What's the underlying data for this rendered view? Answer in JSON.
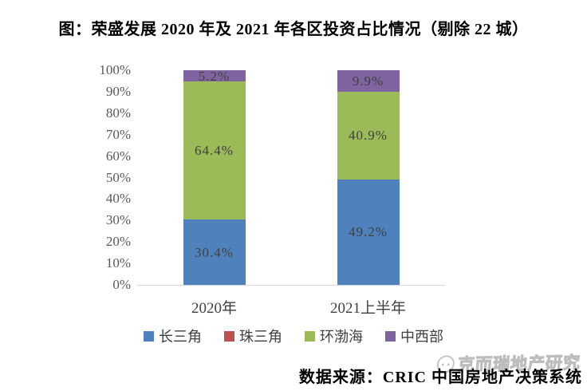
{
  "title": "图：荣盛发展 2020 年及 2021 年各区投资占比情况（剔除 22 城）",
  "source": "数据来源：CRIC 中国房地产决策系统",
  "watermark": "克而瑞地产研究",
  "colors": {
    "axis_line": "#d9d9d9",
    "tick_label": "#595959",
    "data_label": "#3f3f3f"
  },
  "chart_data": {
    "type": "bar",
    "stacked": true,
    "title": "图：荣盛发展 2020 年及 2021 年各区投资占比情况（剔除 22 城）",
    "categories": [
      "2020年",
      "2021上半年"
    ],
    "series": [
      {
        "name": "长三角",
        "color": "#4F81BD",
        "values": [
          30.4,
          49.2
        ],
        "labels": [
          "30.4%",
          "49.2%"
        ]
      },
      {
        "name": "珠三角",
        "color": "#C0504D",
        "values": [
          0,
          0
        ],
        "labels": [
          "",
          ""
        ]
      },
      {
        "name": "环渤海",
        "color": "#9BBB59",
        "values": [
          64.4,
          40.9
        ],
        "labels": [
          "64.4%",
          "40.9%"
        ]
      },
      {
        "name": "中西部",
        "color": "#8064A2",
        "values": [
          5.2,
          9.9
        ],
        "labels": [
          "5.2%",
          "9.9%"
        ]
      }
    ],
    "y_ticks": [
      "0%",
      "10%",
      "20%",
      "30%",
      "40%",
      "50%",
      "60%",
      "70%",
      "80%",
      "90%",
      "100%"
    ],
    "ylim": [
      0,
      100
    ],
    "grid": false,
    "legend_position": "bottom"
  }
}
